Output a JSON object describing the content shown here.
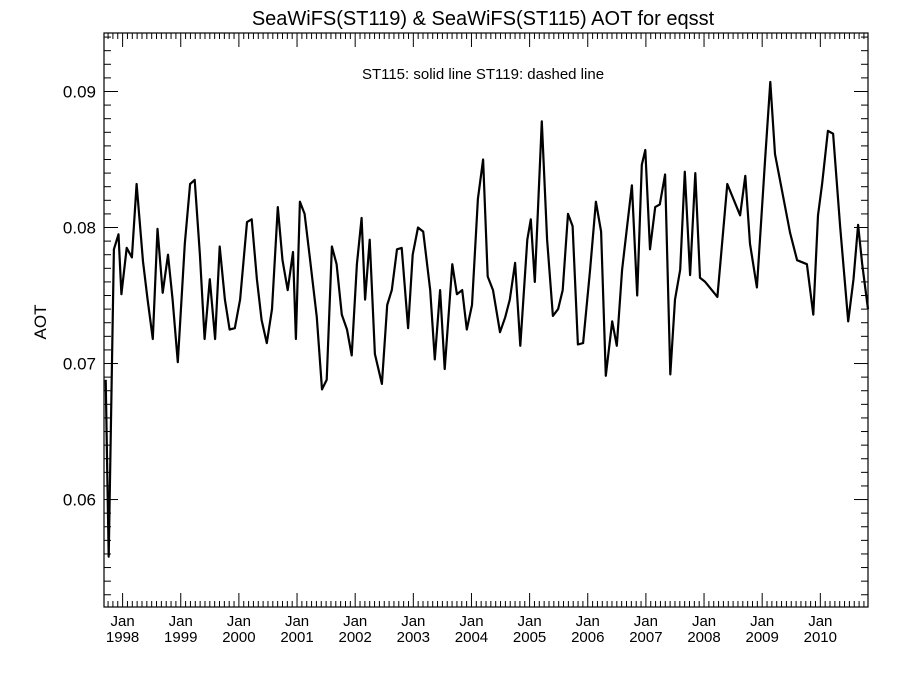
{
  "chart_data": {
    "type": "line",
    "title": "SeaWiFS(ST119) & SeaWiFS(ST115)  AOT for eqsst",
    "annotation": "ST115: solid line   ST119: dashed line",
    "xlabel": "",
    "ylabel": "AOT",
    "xlim": [
      1997.68,
      2010.82
    ],
    "ylim": [
      0.0521,
      0.0943
    ],
    "yticks": [
      {
        "v": 0.06,
        "label": "0.06"
      },
      {
        "v": 0.07,
        "label": "0.07"
      },
      {
        "v": 0.08,
        "label": "0.08"
      },
      {
        "v": 0.09,
        "label": "0.09"
      }
    ],
    "xticks": [
      {
        "v": 1998,
        "month": "Jan",
        "year": "1998"
      },
      {
        "v": 1999,
        "month": "Jan",
        "year": "1999"
      },
      {
        "v": 2000,
        "month": "Jan",
        "year": "2000"
      },
      {
        "v": 2001,
        "month": "Jan",
        "year": "2001"
      },
      {
        "v": 2002,
        "month": "Jan",
        "year": "2002"
      },
      {
        "v": 2003,
        "month": "Jan",
        "year": "2003"
      },
      {
        "v": 2004,
        "month": "Jan",
        "year": "2004"
      },
      {
        "v": 2005,
        "month": "Jan",
        "year": "2005"
      },
      {
        "v": 2006,
        "month": "Jan",
        "year": "2006"
      },
      {
        "v": 2007,
        "month": "Jan",
        "year": "2007"
      },
      {
        "v": 2008,
        "month": "Jan",
        "year": "2008"
      },
      {
        "v": 2009,
        "month": "Jan",
        "year": "2009"
      },
      {
        "v": 2010,
        "month": "Jan",
        "year": "2010"
      }
    ],
    "grid": false,
    "series": [
      {
        "name": "ST115",
        "style": "solid",
        "color": "#000000",
        "points": [
          [
            1997.71,
            0.0688
          ],
          [
            1997.76,
            0.0558
          ],
          [
            1997.85,
            0.0784
          ],
          [
            1997.93,
            0.0795
          ],
          [
            1997.98,
            0.0751
          ],
          [
            1998.07,
            0.0785
          ],
          [
            1998.16,
            0.0778
          ],
          [
            1998.24,
            0.0832
          ],
          [
            1998.35,
            0.0775
          ],
          [
            1998.43,
            0.0747
          ],
          [
            1998.52,
            0.0718
          ],
          [
            1998.6,
            0.0799
          ],
          [
            1998.69,
            0.0752
          ],
          [
            1998.78,
            0.078
          ],
          [
            1998.86,
            0.0747
          ],
          [
            1998.95,
            0.0701
          ],
          [
            1999.07,
            0.0788
          ],
          [
            1999.16,
            0.0832
          ],
          [
            1999.24,
            0.0835
          ],
          [
            1999.33,
            0.078
          ],
          [
            1999.41,
            0.0718
          ],
          [
            1999.5,
            0.0762
          ],
          [
            1999.59,
            0.0718
          ],
          [
            1999.67,
            0.0786
          ],
          [
            1999.76,
            0.0747
          ],
          [
            1999.84,
            0.0725
          ],
          [
            1999.93,
            0.0726
          ],
          [
            2000.02,
            0.0747
          ],
          [
            2000.14,
            0.0804
          ],
          [
            2000.22,
            0.0806
          ],
          [
            2000.31,
            0.0762
          ],
          [
            2000.39,
            0.0732
          ],
          [
            2000.48,
            0.0715
          ],
          [
            2000.57,
            0.074
          ],
          [
            2000.67,
            0.0815
          ],
          [
            2000.75,
            0.0776
          ],
          [
            2000.84,
            0.0754
          ],
          [
            2000.93,
            0.0782
          ],
          [
            2000.98,
            0.0718
          ],
          [
            2001.05,
            0.0819
          ],
          [
            2001.13,
            0.081
          ],
          [
            2001.22,
            0.0778
          ],
          [
            2001.34,
            0.0734
          ],
          [
            2001.43,
            0.0681
          ],
          [
            2001.51,
            0.0688
          ],
          [
            2001.6,
            0.0786
          ],
          [
            2001.68,
            0.0773
          ],
          [
            2001.77,
            0.0736
          ],
          [
            2001.86,
            0.0725
          ],
          [
            2001.94,
            0.0706
          ],
          [
            2002.03,
            0.0773
          ],
          [
            2002.11,
            0.0807
          ],
          [
            2002.17,
            0.0747
          ],
          [
            2002.25,
            0.0791
          ],
          [
            2002.34,
            0.0707
          ],
          [
            2002.46,
            0.0685
          ],
          [
            2002.55,
            0.0743
          ],
          [
            2002.63,
            0.0754
          ],
          [
            2002.72,
            0.0784
          ],
          [
            2002.8,
            0.0785
          ],
          [
            2002.91,
            0.0726
          ],
          [
            2002.99,
            0.078
          ],
          [
            2003.08,
            0.08
          ],
          [
            2003.17,
            0.0797
          ],
          [
            2003.29,
            0.0754
          ],
          [
            2003.37,
            0.0703
          ],
          [
            2003.46,
            0.0754
          ],
          [
            2003.54,
            0.0696
          ],
          [
            2003.67,
            0.0773
          ],
          [
            2003.75,
            0.0751
          ],
          [
            2003.84,
            0.0754
          ],
          [
            2003.92,
            0.0725
          ],
          [
            2004.01,
            0.0743
          ],
          [
            2004.11,
            0.0821
          ],
          [
            2004.2,
            0.085
          ],
          [
            2004.28,
            0.0764
          ],
          [
            2004.37,
            0.0754
          ],
          [
            2004.49,
            0.0723
          ],
          [
            2004.58,
            0.0734
          ],
          [
            2004.66,
            0.0747
          ],
          [
            2004.75,
            0.0774
          ],
          [
            2004.84,
            0.0713
          ],
          [
            2004.96,
            0.0791
          ],
          [
            2005.02,
            0.0806
          ],
          [
            2005.09,
            0.076
          ],
          [
            2005.21,
            0.0878
          ],
          [
            2005.3,
            0.0791
          ],
          [
            2005.4,
            0.0735
          ],
          [
            2005.49,
            0.074
          ],
          [
            2005.57,
            0.0754
          ],
          [
            2005.66,
            0.081
          ],
          [
            2005.74,
            0.0801
          ],
          [
            2005.83,
            0.0714
          ],
          [
            2005.92,
            0.0715
          ],
          [
            2006.04,
            0.0769
          ],
          [
            2006.14,
            0.0819
          ],
          [
            2006.23,
            0.0797
          ],
          [
            2006.31,
            0.0691
          ],
          [
            2006.42,
            0.0731
          ],
          [
            2006.5,
            0.0713
          ],
          [
            2006.59,
            0.0769
          ],
          [
            2006.68,
            0.0802
          ],
          [
            2006.76,
            0.0831
          ],
          [
            2006.85,
            0.075
          ],
          [
            2006.93,
            0.0846
          ],
          [
            2006.99,
            0.0857
          ],
          [
            2007.07,
            0.0784
          ],
          [
            2007.16,
            0.0815
          ],
          [
            2007.24,
            0.0817
          ],
          [
            2007.33,
            0.0839
          ],
          [
            2007.42,
            0.0692
          ],
          [
            2007.5,
            0.0747
          ],
          [
            2007.59,
            0.0769
          ],
          [
            2007.67,
            0.0841
          ],
          [
            2007.76,
            0.0765
          ],
          [
            2007.85,
            0.084
          ],
          [
            2007.93,
            0.0763
          ],
          [
            2008.02,
            0.076
          ],
          [
            2008.23,
            0.0749
          ],
          [
            2008.4,
            0.0832
          ],
          [
            2008.62,
            0.0809
          ],
          [
            2008.71,
            0.0838
          ],
          [
            2008.79,
            0.0788
          ],
          [
            2008.91,
            0.0756
          ],
          [
            2009.05,
            0.085
          ],
          [
            2009.14,
            0.0907
          ],
          [
            2009.22,
            0.0854
          ],
          [
            2009.48,
            0.0796
          ],
          [
            2009.6,
            0.0776
          ],
          [
            2009.77,
            0.0773
          ],
          [
            2009.88,
            0.0736
          ],
          [
            2009.96,
            0.0809
          ],
          [
            2010.03,
            0.0832
          ],
          [
            2010.13,
            0.0871
          ],
          [
            2010.22,
            0.0869
          ],
          [
            2010.34,
            0.0801
          ],
          [
            2010.48,
            0.0731
          ],
          [
            2010.57,
            0.0762
          ],
          [
            2010.65,
            0.0802
          ],
          [
            2010.72,
            0.0773
          ],
          [
            2010.82,
            0.074
          ]
        ]
      }
    ]
  }
}
